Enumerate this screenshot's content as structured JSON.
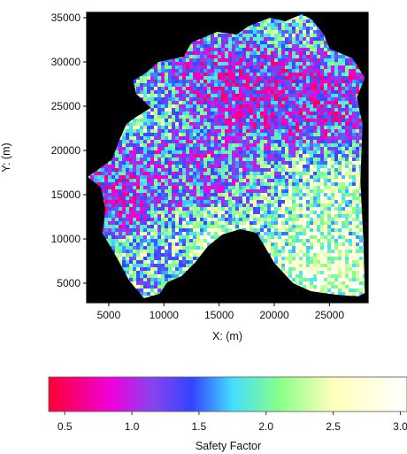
{
  "chart_data": {
    "type": "heatmap",
    "title": "",
    "xlabel": "X: (m)",
    "ylabel": "Y: (m)",
    "xlim": [
      3000,
      28500
    ],
    "ylim": [
      2800,
      35600
    ],
    "x_ticks": [
      5000,
      10000,
      15000,
      20000,
      25000
    ],
    "y_ticks": [
      5000,
      10000,
      15000,
      20000,
      25000,
      30000,
      35000
    ],
    "background_color": "#000000",
    "colorbar": {
      "label": "Safety Factor",
      "range": [
        0.38,
        3.05
      ],
      "ticks": [
        0.5,
        1.0,
        1.5,
        2.0,
        2.5,
        3.0
      ],
      "tick_labels": [
        "0.5",
        "1.0",
        "1.5",
        "2.0",
        "2.5",
        "3.0"
      ],
      "stops": [
        {
          "value": 0.38,
          "color": "#ff0033"
        },
        {
          "value": 0.85,
          "color": "#ee00dd"
        },
        {
          "value": 1.15,
          "color": "#8844ee"
        },
        {
          "value": 1.45,
          "color": "#3344ff"
        },
        {
          "value": 1.75,
          "color": "#44ddff"
        },
        {
          "value": 2.1,
          "color": "#88ff88"
        },
        {
          "value": 2.5,
          "color": "#ffffbb"
        },
        {
          "value": 3.05,
          "color": "#ffffff"
        }
      ]
    },
    "region_outline": [
      [
        3100,
        17000
      ],
      [
        4300,
        15800
      ],
      [
        4700,
        13300
      ],
      [
        4400,
        10700
      ],
      [
        5500,
        8400
      ],
      [
        6900,
        5200
      ],
      [
        8200,
        3300
      ],
      [
        9600,
        3800
      ],
      [
        10300,
        5100
      ],
      [
        11600,
        5800
      ],
      [
        12800,
        7300
      ],
      [
        14000,
        9200
      ],
      [
        15300,
        10500
      ],
      [
        16900,
        11100
      ],
      [
        18400,
        10700
      ],
      [
        20000,
        7300
      ],
      [
        21700,
        5000
      ],
      [
        23300,
        4100
      ],
      [
        25600,
        3700
      ],
      [
        27600,
        3500
      ],
      [
        28200,
        3900
      ],
      [
        28100,
        9200
      ],
      [
        27800,
        16600
      ],
      [
        28000,
        22900
      ],
      [
        27500,
        26000
      ],
      [
        28200,
        28200
      ],
      [
        27100,
        30400
      ],
      [
        25000,
        31500
      ],
      [
        24500,
        33100
      ],
      [
        23400,
        34800
      ],
      [
        22500,
        35400
      ],
      [
        21000,
        34600
      ],
      [
        19600,
        35000
      ],
      [
        17600,
        34000
      ],
      [
        16600,
        33100
      ],
      [
        14800,
        33400
      ],
      [
        12500,
        32200
      ],
      [
        11800,
        30600
      ],
      [
        9500,
        30000
      ],
      [
        8400,
        28800
      ],
      [
        7200,
        27900
      ],
      [
        7500,
        26400
      ],
      [
        8800,
        24800
      ],
      [
        7500,
        23800
      ],
      [
        6600,
        23000
      ],
      [
        6000,
        21300
      ],
      [
        5300,
        19000
      ]
    ],
    "zones": [
      {
        "cx": 21000,
        "cy": 26000,
        "rx": 6500,
        "ry": 3800,
        "fs": 1.0
      },
      {
        "cx": 15500,
        "cy": 28500,
        "rx": 4500,
        "ry": 2800,
        "fs": 1.1
      },
      {
        "cx": 5500,
        "cy": 15000,
        "rx": 2600,
        "ry": 3200,
        "fs": 1.0
      },
      {
        "cx": 12500,
        "cy": 18500,
        "rx": 4200,
        "ry": 3500,
        "fs": 1.35
      },
      {
        "cx": 23500,
        "cy": 14000,
        "rx": 4200,
        "ry": 3800,
        "fs": 2.4
      },
      {
        "cx": 9000,
        "cy": 24500,
        "rx": 2600,
        "ry": 2300,
        "fs": 2.0
      },
      {
        "cx": 16000,
        "cy": 9500,
        "rx": 3500,
        "ry": 2500,
        "fs": 2.3
      },
      {
        "cx": 24500,
        "cy": 7000,
        "rx": 3500,
        "ry": 2500,
        "fs": 2.7
      },
      {
        "cx": 9500,
        "cy": 7500,
        "rx": 2600,
        "ry": 2600,
        "fs": 1.9
      },
      {
        "cx": 18000,
        "cy": 17000,
        "rx": 3000,
        "ry": 3000,
        "fs": 1.55
      }
    ]
  }
}
